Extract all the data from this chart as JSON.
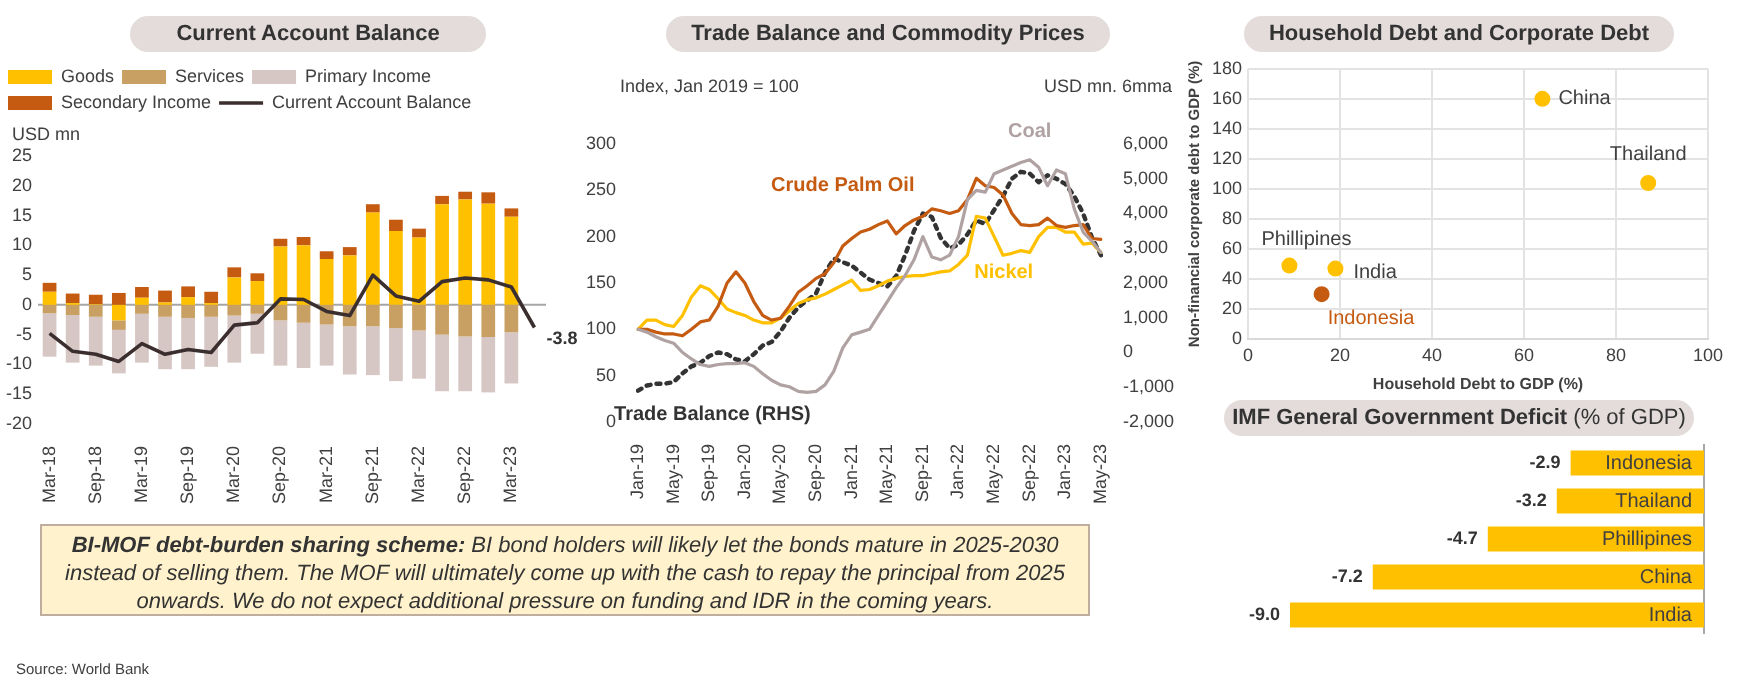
{
  "chart_data": [
    {
      "type": "bar",
      "title": "Current Account Balance",
      "ylabel": "USD mn",
      "stacked": true,
      "legend": "top",
      "grid": false,
      "categories": [
        "Mar-18",
        null,
        "Sep-18",
        null,
        "Mar-19",
        null,
        "Sep-19",
        null,
        "Mar-20",
        null,
        "Sep-20",
        null,
        "Mar-21",
        null,
        "Sep-21",
        null,
        "Mar-22",
        null,
        "Sep-22",
        null,
        "Mar-23",
        null
      ],
      "ylim": [
        -20,
        25
      ],
      "yticks": [
        -20,
        -15,
        -10,
        -5,
        0,
        5,
        10,
        15,
        20,
        25
      ],
      "ref_lines": [
        {
          "axis": "y",
          "value": 0,
          "color": "#a6a6a6"
        }
      ],
      "series": [
        {
          "name": "Goods",
          "color": "#ffc000",
          "values": [
            2.2,
            0.3,
            0.1,
            -2.6,
            1.2,
            0.4,
            1.3,
            0.3,
            4.6,
            4.0,
            9.8,
            10.0,
            7.7,
            8.3,
            15.5,
            12.4,
            11.3,
            16.9,
            17.7,
            17.0,
            14.8,
            null
          ]
        },
        {
          "name": "Services",
          "color": "#c9a063",
          "values": [
            -1.4,
            -1.7,
            -2.0,
            -1.6,
            -1.5,
            -2.0,
            -2.2,
            -2.0,
            -1.8,
            -1.5,
            -2.6,
            -3.0,
            -3.3,
            -3.6,
            -3.6,
            -3.9,
            -4.3,
            -5.0,
            -5.3,
            -5.4,
            -4.6,
            null
          ]
        },
        {
          "name": "Primary Income",
          "color": "#d6c6c4",
          "values": [
            -7.3,
            -8.0,
            -8.2,
            -7.3,
            -8.2,
            -8.8,
            -8.6,
            -8.4,
            -7.9,
            -6.7,
            -7.6,
            -7.6,
            -6.9,
            -8.1,
            -8.2,
            -8.9,
            -8.1,
            -9.5,
            -9.2,
            -9.3,
            -8.6,
            null
          ]
        },
        {
          "name": "Secondary Income",
          "color": "#c55a11",
          "values": [
            1.5,
            1.6,
            1.6,
            2.0,
            1.8,
            2.0,
            1.8,
            1.9,
            1.7,
            1.3,
            1.3,
            1.4,
            1.3,
            1.4,
            1.4,
            1.9,
            1.5,
            1.4,
            1.3,
            1.9,
            1.4,
            null
          ]
        },
        {
          "name": "Current Account Balance",
          "type": "line",
          "color": "#3b2e2e",
          "values": [
            -4.8,
            -7.8,
            -8.3,
            -9.5,
            -6.5,
            -8.3,
            -7.5,
            -8.0,
            -3.4,
            -3.0,
            1.0,
            0.9,
            -1.1,
            -1.8,
            5.0,
            1.5,
            0.6,
            3.9,
            4.5,
            4.2,
            3.0,
            -3.8
          ],
          "value_labels": [
            null,
            null,
            null,
            null,
            null,
            null,
            null,
            null,
            null,
            null,
            null,
            null,
            null,
            null,
            null,
            null,
            null,
            null,
            null,
            null,
            null,
            "-3.8"
          ]
        }
      ]
    },
    {
      "type": "line",
      "title": "Trade Balance and Commodity Prices",
      "ylabel": "Index, Jan 2019 = 100",
      "y2label": "USD mn. 6mma",
      "grid": false,
      "categories": [
        "Jan-19",
        null,
        null,
        null,
        "May-19",
        null,
        null,
        null,
        "Sep-19",
        null,
        null,
        null,
        "Jan-20",
        null,
        null,
        null,
        "May-20",
        null,
        null,
        null,
        "Sep-20",
        null,
        null,
        null,
        "Jan-21",
        null,
        null,
        null,
        "May-21",
        null,
        null,
        null,
        "Sep-21",
        null,
        null,
        null,
        "Jan-22",
        null,
        null,
        null,
        "May-22",
        null,
        null,
        null,
        "Sep-22",
        null,
        null,
        null,
        "Jan-23",
        null,
        null,
        null,
        "May-23"
      ],
      "ylim": [
        0,
        300
      ],
      "yticks": [
        0,
        50,
        100,
        150,
        200,
        250,
        300
      ],
      "y2lim": [
        -2000,
        6000
      ],
      "y2ticks": [
        {
          "value": -2000,
          "label": "-2,000"
        },
        {
          "value": -1000,
          "label": "-1,000"
        },
        0,
        {
          "value": 1000,
          "label": "1,000"
        },
        {
          "value": 2000,
          "label": "2,000"
        },
        {
          "value": 3000,
          "label": "3,000"
        },
        {
          "value": 4000,
          "label": "4,000"
        },
        {
          "value": 5000,
          "label": "5,000"
        },
        {
          "value": 6000,
          "label": "6,000"
        }
      ],
      "series": [
        {
          "name": "Coal",
          "color": "#b0a2a2",
          "values": [
            100,
            97,
            92,
            88,
            85,
            75,
            68,
            62,
            60,
            62,
            63,
            63,
            64,
            60,
            52,
            45,
            40,
            38,
            33,
            32,
            33,
            40,
            55,
            80,
            94,
            97,
            100,
            115,
            130,
            145,
            158,
            175,
            200,
            178,
            175,
            180,
            200,
            240,
            250,
            248,
            268,
            272,
            276,
            280,
            283,
            275,
            255,
            272,
            268,
            230,
            205,
            195,
            183
          ]
        },
        {
          "name": "Crude Palm Oil",
          "color": "#c55a11",
          "values": [
            100,
            100,
            97,
            95,
            95,
            93,
            100,
            108,
            110,
            125,
            150,
            162,
            150,
            130,
            115,
            110,
            112,
            125,
            140,
            147,
            155,
            160,
            172,
            190,
            198,
            205,
            208,
            213,
            217,
            203,
            212,
            218,
            222,
            230,
            228,
            225,
            228,
            240,
            263,
            255,
            253,
            245,
            225,
            213,
            212,
            213,
            220,
            212,
            210,
            212,
            213,
            198,
            197
          ]
        },
        {
          "name": "Nickel",
          "color": "#ffc000",
          "values": [
            100,
            110,
            110,
            105,
            103,
            115,
            135,
            147,
            143,
            133,
            122,
            118,
            115,
            110,
            107,
            107,
            112,
            120,
            128,
            132,
            134,
            138,
            143,
            148,
            153,
            142,
            143,
            147,
            152,
            155,
            157,
            158,
            158,
            160,
            162,
            163,
            170,
            180,
            222,
            220,
            200,
            180,
            182,
            185,
            183,
            200,
            210,
            210,
            205,
            205,
            192,
            193,
            183
          ]
        },
        {
          "name": "Trade Balance (RHS)",
          "axis": "y2",
          "line_style": "dotted",
          "color": "#333333",
          "values": [
            -1100,
            -950,
            -900,
            -900,
            -850,
            -600,
            -400,
            -300,
            -100,
            0,
            -50,
            -200,
            -250,
            -50,
            200,
            300,
            600,
            1000,
            1300,
            1500,
            1700,
            2300,
            2700,
            2600,
            2500,
            2300,
            2100,
            2000,
            1900,
            2200,
            2800,
            3500,
            4000,
            3900,
            3300,
            3000,
            3100,
            3400,
            3800,
            3700,
            4100,
            4500,
            5000,
            5200,
            5150,
            4900,
            5100,
            5000,
            4850,
            4500,
            4000,
            3300,
            2800
          ]
        }
      ]
    },
    {
      "type": "scatter",
      "title": "Household Debt and Corporate Debt",
      "xlabel": "Household Debt to GDP (%)",
      "ylabel": "Non-financial corporate debt to GDP (%)",
      "grid": true,
      "marker": "circle",
      "xlim": [
        0,
        100
      ],
      "xticks": [
        0,
        20,
        40,
        60,
        80,
        100
      ],
      "ylim": [
        0,
        180
      ],
      "yticks": [
        0,
        20,
        40,
        60,
        80,
        100,
        120,
        140,
        160,
        180
      ],
      "series": [
        {
          "name": "China",
          "color": "#ffc000",
          "x": [
            64
          ],
          "values": [
            160
          ]
        },
        {
          "name": "Thailand",
          "color": "#ffc000",
          "x": [
            87
          ],
          "values": [
            104
          ]
        },
        {
          "name": "Phillipines",
          "color": "#ffc000",
          "x": [
            9
          ],
          "values": [
            49
          ]
        },
        {
          "name": "India",
          "color": "#ffc000",
          "x": [
            19
          ],
          "values": [
            47
          ]
        },
        {
          "name": "Indonesia",
          "color": "#c55a11",
          "x": [
            16
          ],
          "values": [
            30
          ]
        }
      ]
    },
    {
      "type": "bar",
      "orientation": "horizontal",
      "title": "IMF General Government Deficit",
      "subtitle": "(% of GDP)",
      "categories": [
        "Indonesia",
        "Thailand",
        "Phillipines",
        "China",
        "India"
      ],
      "values": [
        -2.9,
        -3.2,
        -4.7,
        -7.2,
        -9.0
      ],
      "color": "#ffc000",
      "value_labels": [
        "-2.9",
        "-3.2",
        "-4.7",
        "-7.2",
        "-9.0"
      ]
    },
    {
      "type": "other",
      "title": "BI-MOF debt-burden sharing scheme:",
      "annotations": [
        "BI bond holders will likely let the bonds mature in 2025-2030 instead of selling them. The MOF will ultimately come up with the cash to repay the principal from 2025 onwards. We do not expect additional pressure on funding and IDR in the coming years.",
        "Source: World Bank"
      ]
    }
  ]
}
